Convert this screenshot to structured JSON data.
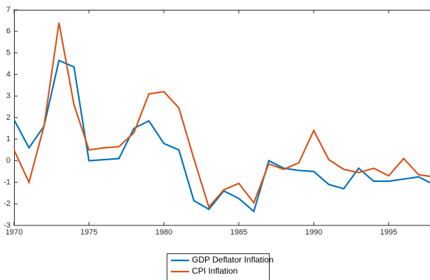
{
  "chart_data": {
    "type": "line",
    "x": [
      1970,
      1971,
      1972,
      1973,
      1974,
      1975,
      1976,
      1977,
      1978,
      1979,
      1980,
      1981,
      1982,
      1983,
      1984,
      1985,
      1986,
      1987,
      1988,
      1989,
      1990,
      1991,
      1992,
      1993,
      1994,
      1995,
      1996,
      1997,
      1998
    ],
    "series": [
      {
        "name": "GDP Deflator Inflation",
        "color": "#0072BD",
        "values": [
          1.9,
          0.6,
          1.6,
          4.65,
          4.35,
          0.0,
          0.05,
          0.1,
          1.5,
          1.85,
          0.8,
          0.5,
          -1.85,
          -2.25,
          -1.4,
          -1.75,
          -2.35,
          0.0,
          -0.35,
          -0.45,
          -0.5,
          -1.1,
          -1.3,
          -0.35,
          -0.95,
          -0.95,
          -0.85,
          -0.75,
          -1.1
        ]
      },
      {
        "name": "CPI Inflation",
        "color": "#D95319",
        "values": [
          0.5,
          -1.0,
          1.6,
          6.4,
          2.6,
          0.5,
          0.6,
          0.65,
          1.3,
          3.1,
          3.2,
          2.45,
          0.1,
          -2.15,
          -1.35,
          -1.05,
          -1.95,
          -0.15,
          -0.4,
          -0.1,
          1.4,
          0.05,
          -0.4,
          -0.55,
          -0.35,
          -0.7,
          0.1,
          -0.65,
          -0.75
        ]
      }
    ],
    "xlim": [
      1970,
      1998
    ],
    "xticks": [
      1970,
      1975,
      1980,
      1985,
      1990,
      1995
    ],
    "ylim": [
      -3,
      7
    ],
    "yticks": [
      -3,
      -2,
      -1,
      0,
      1,
      2,
      3,
      4,
      5,
      6,
      7
    ]
  }
}
